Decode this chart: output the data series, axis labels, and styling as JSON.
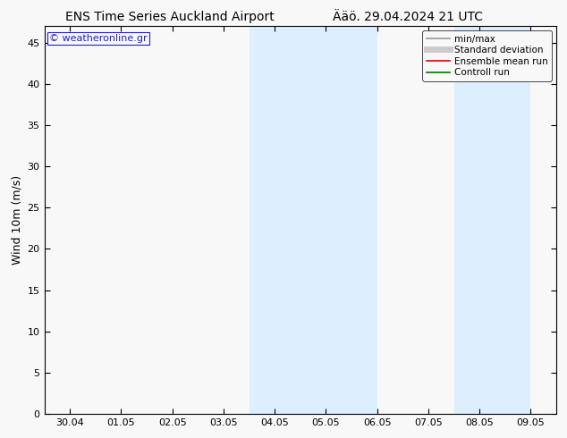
{
  "title_left": "ENS Time Series Auckland Airport",
  "title_right": "Ääö. 29.04.2024 21 UTC",
  "ylabel": "Wind 10m (m/s)",
  "ylim": [
    0,
    47
  ],
  "yticks": [
    0,
    5,
    10,
    15,
    20,
    25,
    30,
    35,
    40,
    45
  ],
  "xlim_start": -0.5,
  "xlim_end": 9.5,
  "x_tick_labels": [
    "30.04",
    "01.05",
    "02.05",
    "03.05",
    "04.05",
    "05.05",
    "06.05",
    "07.05",
    "08.05",
    "09.05"
  ],
  "x_tick_positions": [
    0,
    1,
    2,
    3,
    4,
    5,
    6,
    7,
    8,
    9
  ],
  "shading_bands": [
    {
      "xmin": 3.5,
      "xmax": 6.0
    },
    {
      "xmin": 7.5,
      "xmax": 9.0
    }
  ],
  "shading_color": "#ddeeff",
  "background_color": "#f8f8f8",
  "watermark": "© weatheronline.gr",
  "watermark_color": "#2222bb",
  "legend_items": [
    {
      "label": "min/max",
      "color": "#999999",
      "lw": 1.2
    },
    {
      "label": "Standard deviation",
      "color": "#cccccc",
      "lw": 5
    },
    {
      "label": "Ensemble mean run",
      "color": "#dd0000",
      "lw": 1.2
    },
    {
      "label": "Controll run",
      "color": "#007700",
      "lw": 1.2
    }
  ],
  "title_fontsize": 10,
  "axis_label_fontsize": 9,
  "tick_fontsize": 8,
  "legend_fontsize": 7.5,
  "watermark_fontsize": 8
}
